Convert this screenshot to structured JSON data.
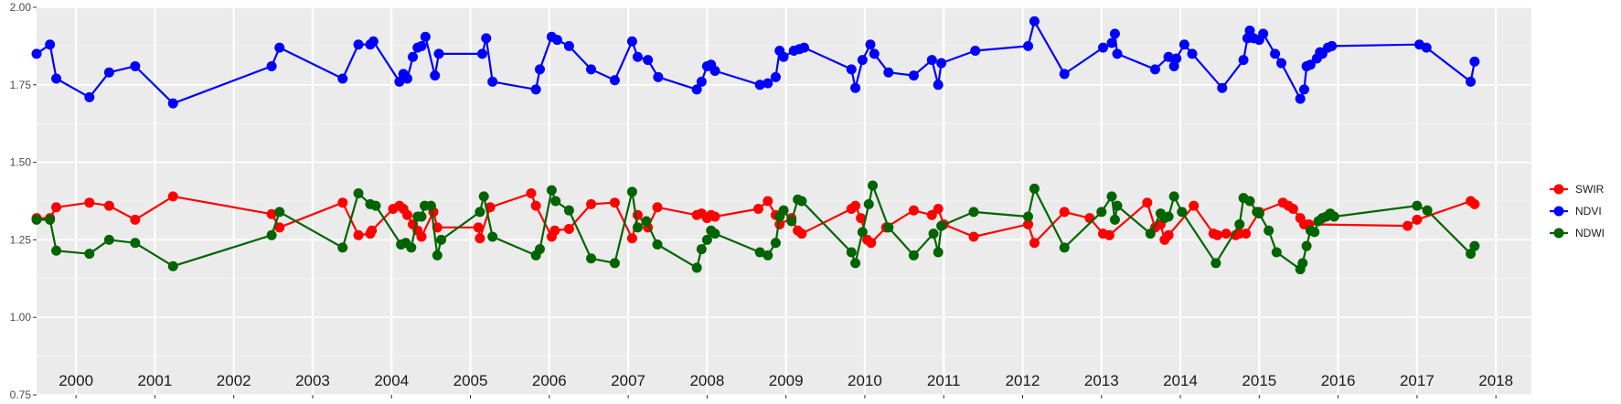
{
  "chart_data": {
    "type": "line",
    "title": "",
    "xlabel": "",
    "ylabel": "",
    "xlim": [
      2000,
      2018.95
    ],
    "ylim": [
      0.75,
      2.0
    ],
    "yticks": [
      0.75,
      1.0,
      1.25,
      1.5,
      1.75,
      2.0
    ],
    "ytick_labels": [
      "0.75",
      "1.00",
      "1.25",
      "1.50",
      "1.75",
      "2.00"
    ],
    "year_boundaries": [
      2000.5,
      2001.5,
      2002.5,
      2003.5,
      2004.5,
      2005.5,
      2006.5,
      2007.5,
      2008.5,
      2009.5,
      2010.5,
      2011.5,
      2012.5,
      2013.5,
      2014.5,
      2015.5,
      2016.5,
      2017.5,
      2018.5
    ],
    "year_labels": [
      {
        "x": 2000.5,
        "label": "2000"
      },
      {
        "x": 2001.5,
        "label": "2001"
      },
      {
        "x": 2002.5,
        "label": "2002"
      },
      {
        "x": 2003.5,
        "label": "2003"
      },
      {
        "x": 2004.5,
        "label": "2004"
      },
      {
        "x": 2005.5,
        "label": "2005"
      },
      {
        "x": 2006.5,
        "label": "2006"
      },
      {
        "x": 2007.5,
        "label": "2007"
      },
      {
        "x": 2008.5,
        "label": "2008"
      },
      {
        "x": 2009.5,
        "label": "2009"
      },
      {
        "x": 2010.5,
        "label": "2010"
      },
      {
        "x": 2011.5,
        "label": "2011"
      },
      {
        "x": 2012.5,
        "label": "2012"
      },
      {
        "x": 2013.5,
        "label": "2013"
      },
      {
        "x": 2014.5,
        "label": "2014"
      },
      {
        "x": 2015.5,
        "label": "2015"
      },
      {
        "x": 2016.5,
        "label": "2016"
      },
      {
        "x": 2017.5,
        "label": "2017"
      },
      {
        "x": 2018.5,
        "label": "2018"
      }
    ],
    "grid": true,
    "legend_position": "right",
    "series": [
      {
        "name": "SWIR",
        "color": "#ff0000",
        "points": [
          [
            2000.0,
            1.32
          ],
          [
            2000.17,
            1.32
          ],
          [
            2000.25,
            1.355
          ],
          [
            2000.67,
            1.37
          ],
          [
            2000.92,
            1.36
          ],
          [
            2001.25,
            1.315
          ],
          [
            2001.73,
            1.39
          ],
          [
            2002.98,
            1.333
          ],
          [
            2003.08,
            1.29
          ],
          [
            2003.88,
            1.37
          ],
          [
            2004.08,
            1.265
          ],
          [
            2004.23,
            1.27
          ],
          [
            2004.25,
            1.28
          ],
          [
            2004.52,
            1.35
          ],
          [
            2004.6,
            1.36
          ],
          [
            2004.65,
            1.35
          ],
          [
            2004.7,
            1.33
          ],
          [
            2004.77,
            1.3
          ],
          [
            2004.83,
            1.28
          ],
          [
            2004.88,
            1.26
          ],
          [
            2005.03,
            1.34
          ],
          [
            2005.08,
            1.29
          ],
          [
            2005.6,
            1.29
          ],
          [
            2005.62,
            1.255
          ],
          [
            2005.75,
            1.355
          ],
          [
            2006.27,
            1.4
          ],
          [
            2006.33,
            1.36
          ],
          [
            2006.53,
            1.26
          ],
          [
            2006.57,
            1.28
          ],
          [
            2006.75,
            1.285
          ],
          [
            2007.03,
            1.365
          ],
          [
            2007.33,
            1.37
          ],
          [
            2007.55,
            1.255
          ],
          [
            2007.62,
            1.33
          ],
          [
            2007.75,
            1.29
          ],
          [
            2007.87,
            1.355
          ],
          [
            2008.37,
            1.33
          ],
          [
            2008.43,
            1.335
          ],
          [
            2008.5,
            1.32
          ],
          [
            2008.55,
            1.33
          ],
          [
            2008.6,
            1.325
          ],
          [
            2009.15,
            1.35
          ],
          [
            2009.27,
            1.375
          ],
          [
            2009.37,
            1.33
          ],
          [
            2009.42,
            1.3
          ],
          [
            2009.57,
            1.32
          ],
          [
            2009.65,
            1.28
          ],
          [
            2009.7,
            1.27
          ],
          [
            2010.33,
            1.35
          ],
          [
            2010.38,
            1.36
          ],
          [
            2010.45,
            1.32
          ],
          [
            2010.53,
            1.25
          ],
          [
            2010.58,
            1.24
          ],
          [
            2010.77,
            1.29
          ],
          [
            2011.12,
            1.345
          ],
          [
            2011.35,
            1.33
          ],
          [
            2011.43,
            1.35
          ],
          [
            2011.5,
            1.3
          ],
          [
            2011.88,
            1.26
          ],
          [
            2012.57,
            1.3
          ],
          [
            2012.65,
            1.24
          ],
          [
            2013.03,
            1.34
          ],
          [
            2013.35,
            1.32
          ],
          [
            2013.52,
            1.27
          ],
          [
            2013.6,
            1.265
          ],
          [
            2014.08,
            1.37
          ],
          [
            2014.18,
            1.29
          ],
          [
            2014.25,
            1.3
          ],
          [
            2014.3,
            1.25
          ],
          [
            2014.35,
            1.265
          ],
          [
            2014.67,
            1.36
          ],
          [
            2014.92,
            1.27
          ],
          [
            2014.97,
            1.265
          ],
          [
            2015.08,
            1.27
          ],
          [
            2015.2,
            1.265
          ],
          [
            2015.25,
            1.27
          ],
          [
            2015.33,
            1.27
          ],
          [
            2015.5,
            1.34
          ],
          [
            2015.8,
            1.37
          ],
          [
            2015.87,
            1.36
          ],
          [
            2015.93,
            1.35
          ],
          [
            2016.02,
            1.32
          ],
          [
            2016.07,
            1.3
          ],
          [
            2016.13,
            1.3
          ],
          [
            2017.38,
            1.295
          ],
          [
            2017.5,
            1.315
          ],
          [
            2018.18,
            1.375
          ],
          [
            2018.23,
            1.365
          ]
        ]
      },
      {
        "name": "NDVI",
        "color": "#0000ff",
        "points": [
          [
            2000.0,
            1.85
          ],
          [
            2000.17,
            1.88
          ],
          [
            2000.25,
            1.77
          ],
          [
            2000.67,
            1.71
          ],
          [
            2000.92,
            1.79
          ],
          [
            2001.25,
            1.81
          ],
          [
            2001.73,
            1.69
          ],
          [
            2002.98,
            1.81
          ],
          [
            2003.08,
            1.87
          ],
          [
            2003.88,
            1.77
          ],
          [
            2004.08,
            1.88
          ],
          [
            2004.23,
            1.88
          ],
          [
            2004.27,
            1.89
          ],
          [
            2004.6,
            1.76
          ],
          [
            2004.65,
            1.785
          ],
          [
            2004.7,
            1.77
          ],
          [
            2004.77,
            1.84
          ],
          [
            2004.83,
            1.87
          ],
          [
            2004.88,
            1.875
          ],
          [
            2004.93,
            1.905
          ],
          [
            2005.05,
            1.78
          ],
          [
            2005.1,
            1.85
          ],
          [
            2005.65,
            1.85
          ],
          [
            2005.7,
            1.9
          ],
          [
            2005.78,
            1.76
          ],
          [
            2006.33,
            1.735
          ],
          [
            2006.38,
            1.8
          ],
          [
            2006.53,
            1.905
          ],
          [
            2006.6,
            1.895
          ],
          [
            2006.75,
            1.875
          ],
          [
            2007.03,
            1.8
          ],
          [
            2007.33,
            1.765
          ],
          [
            2007.55,
            1.89
          ],
          [
            2007.62,
            1.84
          ],
          [
            2007.75,
            1.83
          ],
          [
            2007.88,
            1.775
          ],
          [
            2008.37,
            1.735
          ],
          [
            2008.43,
            1.76
          ],
          [
            2008.5,
            1.81
          ],
          [
            2008.55,
            1.815
          ],
          [
            2008.6,
            1.795
          ],
          [
            2009.17,
            1.75
          ],
          [
            2009.27,
            1.755
          ],
          [
            2009.37,
            1.775
          ],
          [
            2009.42,
            1.86
          ],
          [
            2009.47,
            1.84
          ],
          [
            2009.6,
            1.86
          ],
          [
            2009.67,
            1.865
          ],
          [
            2009.73,
            1.87
          ],
          [
            2010.33,
            1.8
          ],
          [
            2010.38,
            1.74
          ],
          [
            2010.47,
            1.83
          ],
          [
            2010.57,
            1.88
          ],
          [
            2010.62,
            1.85
          ],
          [
            2010.8,
            1.79
          ],
          [
            2011.12,
            1.78
          ],
          [
            2011.35,
            1.83
          ],
          [
            2011.43,
            1.75
          ],
          [
            2011.47,
            1.82
          ],
          [
            2011.9,
            1.86
          ],
          [
            2012.57,
            1.875
          ],
          [
            2012.65,
            1.955
          ],
          [
            2013.03,
            1.785
          ],
          [
            2013.52,
            1.87
          ],
          [
            2013.63,
            1.885
          ],
          [
            2013.67,
            1.915
          ],
          [
            2013.7,
            1.85
          ],
          [
            2014.18,
            1.8
          ],
          [
            2014.35,
            1.84
          ],
          [
            2014.42,
            1.81
          ],
          [
            2014.45,
            1.835
          ],
          [
            2014.55,
            1.88
          ],
          [
            2014.65,
            1.85
          ],
          [
            2015.03,
            1.74
          ],
          [
            2015.3,
            1.83
          ],
          [
            2015.35,
            1.9
          ],
          [
            2015.38,
            1.925
          ],
          [
            2015.43,
            1.9
          ],
          [
            2015.5,
            1.895
          ],
          [
            2015.55,
            1.915
          ],
          [
            2015.7,
            1.85
          ],
          [
            2015.78,
            1.82
          ],
          [
            2016.02,
            1.705
          ],
          [
            2016.07,
            1.735
          ],
          [
            2016.1,
            1.81
          ],
          [
            2016.15,
            1.815
          ],
          [
            2016.23,
            1.835
          ],
          [
            2016.27,
            1.855
          ],
          [
            2016.3,
            1.85
          ],
          [
            2016.37,
            1.87
          ],
          [
            2016.42,
            1.875
          ],
          [
            2017.53,
            1.88
          ],
          [
            2017.62,
            1.87
          ],
          [
            2018.18,
            1.76
          ],
          [
            2018.23,
            1.825
          ]
        ]
      },
      {
        "name": "NDWI",
        "color": "#006400",
        "points": [
          [
            2000.0,
            1.315
          ],
          [
            2000.17,
            1.315
          ],
          [
            2000.25,
            1.215
          ],
          [
            2000.67,
            1.205
          ],
          [
            2000.92,
            1.25
          ],
          [
            2001.25,
            1.24
          ],
          [
            2001.73,
            1.165
          ],
          [
            2002.98,
            1.265
          ],
          [
            2003.08,
            1.34
          ],
          [
            2003.88,
            1.225
          ],
          [
            2004.08,
            1.4
          ],
          [
            2004.23,
            1.365
          ],
          [
            2004.3,
            1.36
          ],
          [
            2004.62,
            1.235
          ],
          [
            2004.68,
            1.24
          ],
          [
            2004.75,
            1.225
          ],
          [
            2004.83,
            1.325
          ],
          [
            2004.88,
            1.325
          ],
          [
            2004.92,
            1.36
          ],
          [
            2005.0,
            1.36
          ],
          [
            2005.08,
            1.2
          ],
          [
            2005.13,
            1.25
          ],
          [
            2005.62,
            1.34
          ],
          [
            2005.67,
            1.39
          ],
          [
            2005.78,
            1.26
          ],
          [
            2006.33,
            1.2
          ],
          [
            2006.38,
            1.22
          ],
          [
            2006.53,
            1.41
          ],
          [
            2006.58,
            1.375
          ],
          [
            2006.75,
            1.345
          ],
          [
            2007.03,
            1.19
          ],
          [
            2007.33,
            1.175
          ],
          [
            2007.55,
            1.405
          ],
          [
            2007.62,
            1.29
          ],
          [
            2007.73,
            1.31
          ],
          [
            2007.87,
            1.235
          ],
          [
            2008.37,
            1.16
          ],
          [
            2008.43,
            1.22
          ],
          [
            2008.5,
            1.25
          ],
          [
            2008.55,
            1.28
          ],
          [
            2008.6,
            1.27
          ],
          [
            2009.17,
            1.21
          ],
          [
            2009.27,
            1.2
          ],
          [
            2009.37,
            1.24
          ],
          [
            2009.42,
            1.325
          ],
          [
            2009.47,
            1.345
          ],
          [
            2009.57,
            1.31
          ],
          [
            2009.65,
            1.38
          ],
          [
            2009.7,
            1.375
          ],
          [
            2010.33,
            1.21
          ],
          [
            2010.38,
            1.175
          ],
          [
            2010.47,
            1.275
          ],
          [
            2010.55,
            1.365
          ],
          [
            2010.6,
            1.425
          ],
          [
            2010.8,
            1.29
          ],
          [
            2011.12,
            1.2
          ],
          [
            2011.37,
            1.27
          ],
          [
            2011.43,
            1.21
          ],
          [
            2011.47,
            1.295
          ],
          [
            2011.88,
            1.34
          ],
          [
            2012.57,
            1.325
          ],
          [
            2012.65,
            1.415
          ],
          [
            2013.03,
            1.225
          ],
          [
            2013.5,
            1.34
          ],
          [
            2013.63,
            1.39
          ],
          [
            2013.67,
            1.315
          ],
          [
            2013.7,
            1.36
          ],
          [
            2014.12,
            1.27
          ],
          [
            2014.25,
            1.335
          ],
          [
            2014.3,
            1.32
          ],
          [
            2014.35,
            1.325
          ],
          [
            2014.42,
            1.39
          ],
          [
            2014.52,
            1.34
          ],
          [
            2014.95,
            1.175
          ],
          [
            2015.25,
            1.3
          ],
          [
            2015.3,
            1.385
          ],
          [
            2015.38,
            1.375
          ],
          [
            2015.47,
            1.34
          ],
          [
            2015.5,
            1.335
          ],
          [
            2015.62,
            1.28
          ],
          [
            2015.72,
            1.21
          ],
          [
            2016.02,
            1.155
          ],
          [
            2016.05,
            1.175
          ],
          [
            2016.1,
            1.23
          ],
          [
            2016.15,
            1.28
          ],
          [
            2016.2,
            1.275
          ],
          [
            2016.25,
            1.31
          ],
          [
            2016.3,
            1.32
          ],
          [
            2016.35,
            1.325
          ],
          [
            2016.4,
            1.335
          ],
          [
            2016.45,
            1.325
          ],
          [
            2017.5,
            1.36
          ],
          [
            2017.63,
            1.345
          ],
          [
            2018.18,
            1.205
          ],
          [
            2018.23,
            1.23
          ]
        ]
      }
    ]
  }
}
